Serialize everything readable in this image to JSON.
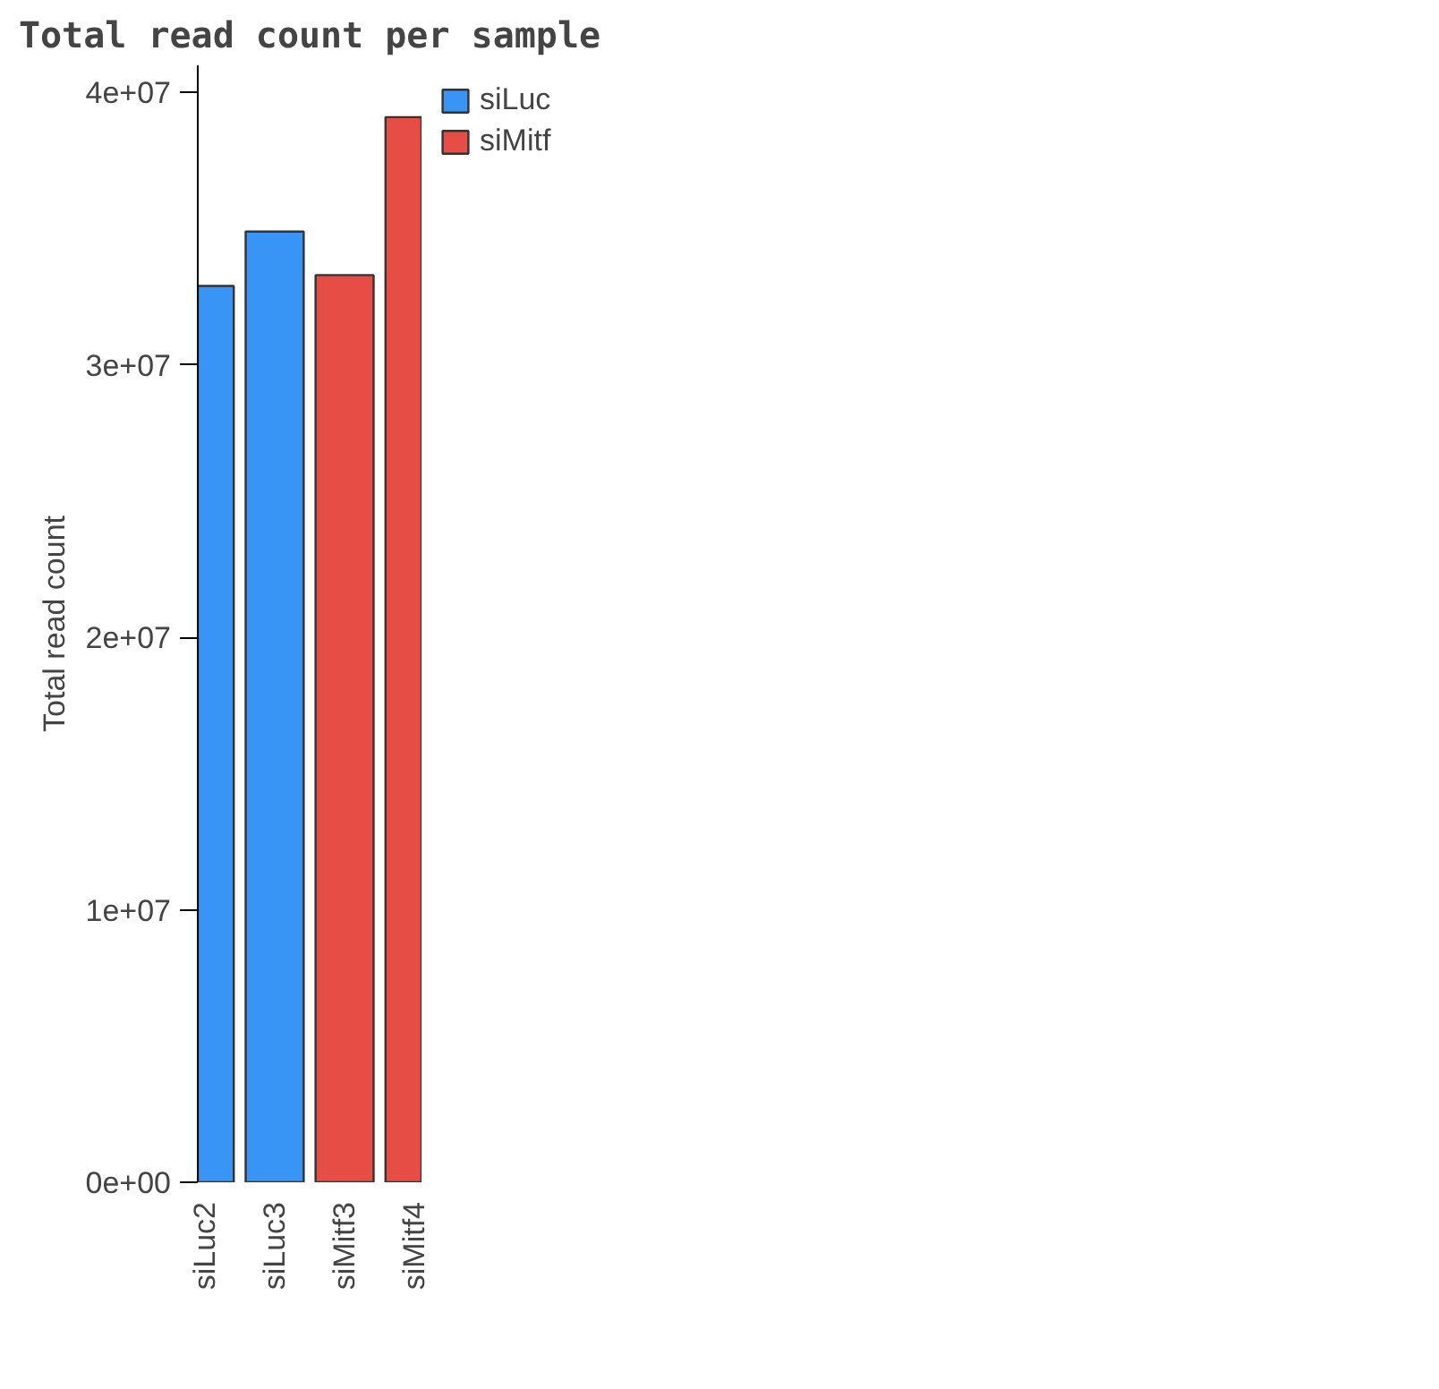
{
  "chart_data": {
    "type": "bar",
    "title": "Total read count per sample",
    "ylabel": "Total read count",
    "categories": [
      "siLuc2",
      "siLuc3",
      "siMitf3",
      "siMitf4"
    ],
    "series": [
      {
        "name": "siLuc",
        "color": "#3894f5",
        "values": [
          32900000,
          34900000,
          null,
          null
        ]
      },
      {
        "name": "siMitf",
        "color": "#e64e45",
        "values": [
          null,
          null,
          33300000,
          39100000
        ]
      }
    ],
    "ylim": [
      0,
      41000000
    ],
    "yticks": [
      {
        "value": 0,
        "label": "0e+00"
      },
      {
        "value": 10000000,
        "label": "1e+07"
      },
      {
        "value": 20000000,
        "label": "2e+07"
      },
      {
        "value": 30000000,
        "label": "3e+07"
      },
      {
        "value": 40000000,
        "label": "4e+07"
      }
    ],
    "grid": false,
    "legend": "right"
  }
}
